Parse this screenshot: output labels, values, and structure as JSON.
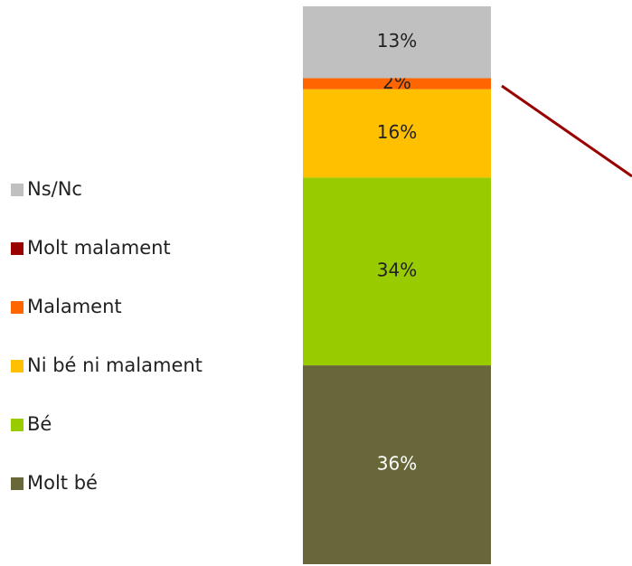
{
  "chart_data": {
    "type": "stacked_bar",
    "categories": [
      null
    ],
    "series": [
      {
        "name": "Molt bé",
        "color": "#67673a",
        "values": [
          36
        ],
        "value_labels": [
          "36%"
        ]
      },
      {
        "name": "Bé",
        "color": "#99cc00",
        "values": [
          34
        ],
        "value_labels": [
          "34%"
        ]
      },
      {
        "name": "Ni bé ni malament",
        "color": "#ffc000",
        "values": [
          16
        ],
        "value_labels": [
          "16%"
        ]
      },
      {
        "name": "Malament",
        "color": "#ff6600",
        "values": [
          2
        ],
        "value_labels": [
          "2%"
        ]
      },
      {
        "name": "Molt malament",
        "color": "#990000",
        "values": [
          0
        ],
        "value_labels": [
          null
        ]
      },
      {
        "name": "Ns/Nc",
        "color": "#c0c0c0",
        "values": [
          13
        ],
        "value_labels": [
          "13%"
        ]
      }
    ],
    "ylim": [
      0,
      101
    ],
    "legend": "left"
  }
}
